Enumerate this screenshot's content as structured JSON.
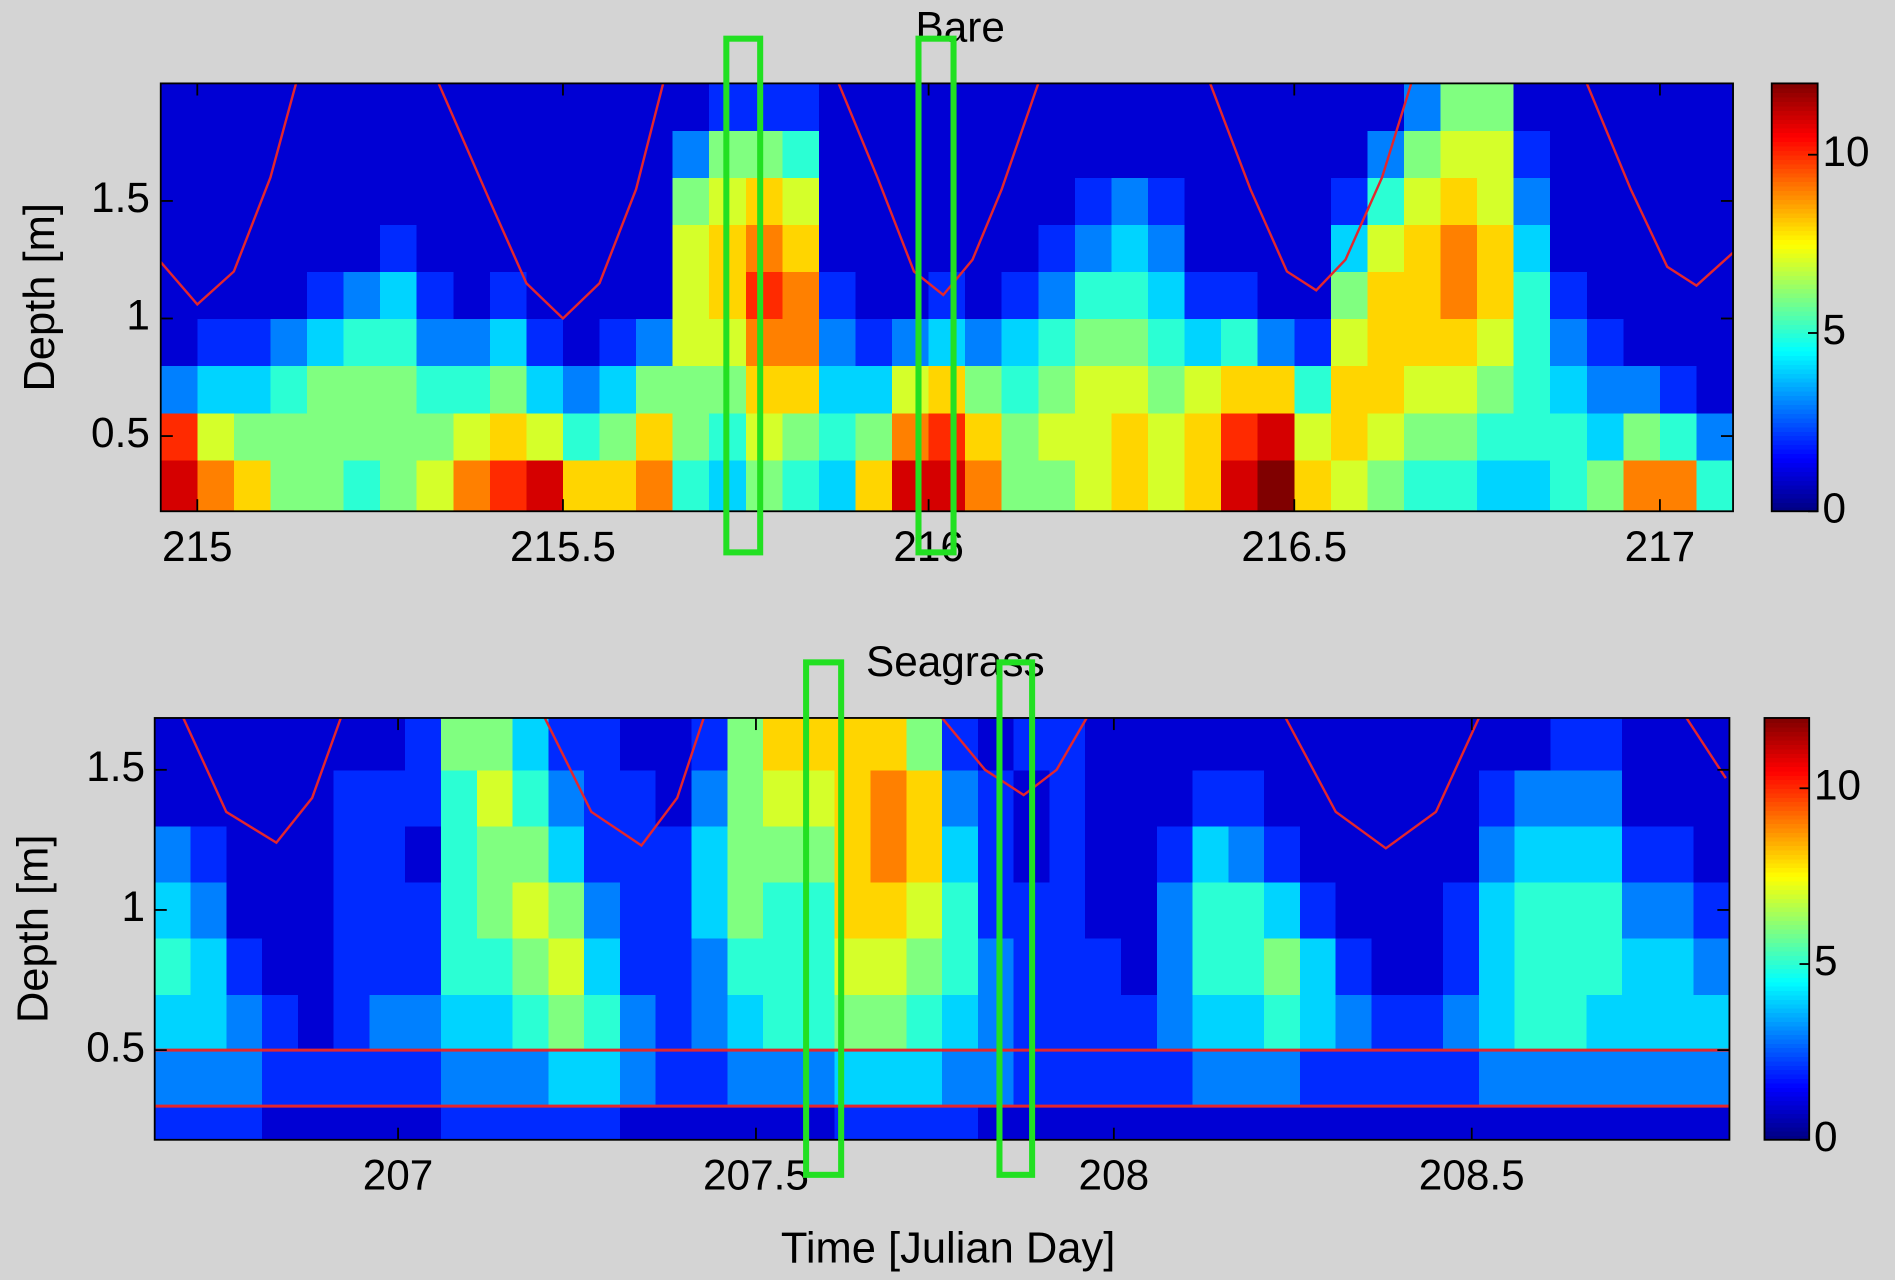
{
  "chart_data": [
    {
      "type": "heatmap",
      "title": "Bare",
      "ylabel": "Depth [m]",
      "colormap": "jet",
      "xlim": [
        214.95,
        217.1
      ],
      "ylim": [
        0.18,
        2.0
      ],
      "xticks": [
        215,
        215.5,
        216,
        216.5,
        217
      ],
      "yticks": [
        0.5,
        1,
        1.5
      ],
      "clim": [
        0,
        12
      ],
      "cticks": [
        0,
        5,
        10
      ],
      "xbins": [
        214.95,
        215,
        215.05,
        215.1,
        215.15,
        215.2,
        215.25,
        215.3,
        215.35,
        215.4,
        215.45,
        215.5,
        215.55,
        215.6,
        215.65,
        215.7,
        215.75,
        215.8,
        215.85,
        215.9,
        215.95,
        216,
        216.05,
        216.1,
        216.15,
        216.2,
        216.25,
        216.3,
        216.35,
        216.4,
        216.45,
        216.5,
        216.55,
        216.6,
        216.65,
        216.7,
        216.75,
        216.8,
        216.85,
        216.9,
        216.95,
        217,
        217.05,
        217.1
      ],
      "ybins": [
        0.18,
        0.4,
        0.6,
        0.8,
        1.0,
        1.2,
        1.4,
        1.6,
        1.8,
        2.0
      ],
      "z": [
        [
          11,
          10,
          3,
          1,
          1,
          1,
          1,
          1,
          1
        ],
        [
          9,
          7,
          4,
          2,
          1,
          1,
          1,
          1,
          1
        ],
        [
          8,
          6,
          4,
          2,
          1,
          1,
          1,
          1,
          1
        ],
        [
          6,
          6,
          5,
          3,
          1,
          1,
          1,
          1,
          1
        ],
        [
          6,
          6,
          6,
          4,
          2,
          1,
          1,
          1,
          1
        ],
        [
          5,
          6,
          6,
          5,
          3,
          1,
          1,
          1,
          1
        ],
        [
          6,
          6,
          6,
          5,
          4,
          2,
          1,
          1,
          1
        ],
        [
          7,
          6,
          5,
          3,
          2,
          1,
          1,
          1,
          1
        ],
        [
          9,
          7,
          5,
          3,
          1,
          1,
          1,
          1,
          1
        ],
        [
          10,
          8,
          6,
          4,
          2,
          1,
          1,
          1,
          1
        ],
        [
          11,
          7,
          4,
          2,
          1,
          1,
          1,
          1,
          1
        ],
        [
          8,
          5,
          3,
          1,
          1,
          1,
          1,
          1,
          1
        ],
        [
          8,
          6,
          4,
          2,
          1,
          1,
          1,
          1,
          1
        ],
        [
          9,
          8,
          6,
          3,
          1,
          1,
          1,
          1,
          1
        ],
        [
          5,
          6,
          6,
          7,
          7,
          7,
          6,
          3,
          1
        ],
        [
          4,
          5,
          6,
          7,
          8,
          8,
          7,
          6,
          2
        ],
        [
          6,
          7,
          8,
          9,
          10,
          9,
          8,
          6,
          2
        ],
        [
          5,
          6,
          8,
          9,
          9,
          8,
          7,
          5,
          2
        ],
        [
          4,
          5,
          4,
          3,
          2,
          1,
          1,
          1,
          1
        ],
        [
          8,
          6,
          4,
          2,
          1,
          1,
          1,
          1,
          1
        ],
        [
          11,
          9,
          7,
          3,
          1,
          1,
          1,
          1,
          1
        ],
        [
          11,
          10,
          8,
          4,
          2,
          1,
          1,
          1,
          1
        ],
        [
          9,
          8,
          6,
          3,
          1,
          1,
          1,
          1,
          1
        ],
        [
          6,
          6,
          5,
          4,
          2,
          1,
          1,
          1,
          1
        ],
        [
          6,
          7,
          6,
          5,
          3,
          2,
          1,
          1,
          1
        ],
        [
          7,
          7,
          7,
          6,
          5,
          3,
          2,
          1,
          1
        ],
        [
          8,
          8,
          7,
          6,
          5,
          4,
          3,
          1,
          1
        ],
        [
          7,
          7,
          6,
          5,
          4,
          3,
          2,
          1,
          1
        ],
        [
          8,
          8,
          7,
          4,
          2,
          1,
          1,
          1,
          1
        ],
        [
          11,
          10,
          8,
          5,
          2,
          1,
          1,
          1,
          1
        ],
        [
          12,
          11,
          8,
          3,
          1,
          1,
          1,
          1,
          1
        ],
        [
          8,
          7,
          5,
          2,
          1,
          1,
          1,
          1,
          1
        ],
        [
          7,
          8,
          8,
          7,
          6,
          4,
          2,
          1,
          1
        ],
        [
          6,
          7,
          8,
          8,
          8,
          7,
          5,
          3,
          1
        ],
        [
          5,
          6,
          7,
          8,
          8,
          8,
          7,
          6,
          3
        ],
        [
          5,
          6,
          7,
          8,
          9,
          9,
          8,
          7,
          6
        ],
        [
          4,
          5,
          6,
          7,
          8,
          8,
          7,
          7,
          6
        ],
        [
          4,
          5,
          5,
          5,
          5,
          4,
          3,
          2,
          1
        ],
        [
          5,
          5,
          4,
          3,
          2,
          1,
          1,
          1,
          1
        ],
        [
          6,
          4,
          3,
          2,
          1,
          1,
          1,
          1,
          1
        ],
        [
          9,
          6,
          3,
          1,
          1,
          1,
          1,
          1,
          1
        ],
        [
          9,
          5,
          2,
          1,
          1,
          1,
          1,
          1,
          1
        ],
        [
          5,
          3,
          1,
          1,
          1,
          1,
          1,
          1,
          1
        ]
      ],
      "tide": {
        "color": "#e3262d",
        "x": [
          214.95,
          215.0,
          215.05,
          215.1,
          215.135,
          null,
          215.33,
          215.4,
          215.45,
          215.5,
          215.55,
          215.6,
          215.637,
          null,
          215.877,
          215.93,
          215.98,
          216.02,
          216.06,
          216.1,
          216.15,
          null,
          216.385,
          216.44,
          216.49,
          216.53,
          216.57,
          216.62,
          216.66,
          null,
          216.9,
          216.96,
          217.01,
          217.05,
          217.1
        ],
        "y": [
          1.24,
          1.06,
          1.2,
          1.6,
          2.0,
          null,
          2.0,
          1.5,
          1.15,
          1.0,
          1.15,
          1.55,
          2.0,
          null,
          2.0,
          1.6,
          1.2,
          1.1,
          1.25,
          1.55,
          2.0,
          null,
          2.0,
          1.55,
          1.2,
          1.12,
          1.25,
          1.6,
          2.0,
          null,
          2.0,
          1.55,
          1.22,
          1.14,
          1.28
        ]
      }
    },
    {
      "type": "heatmap",
      "title": "Seagrass",
      "ylabel": "Depth [m]",
      "xlabel": "Time [Julian Day]",
      "colormap": "jet",
      "xlim": [
        206.66,
        208.86
      ],
      "ylim": [
        0.18,
        1.685
      ],
      "xticks": [
        207,
        207.5,
        208,
        208.5
      ],
      "yticks": [
        0.5,
        1,
        1.5
      ],
      "clim": [
        0,
        12
      ],
      "cticks": [
        0,
        5,
        10
      ],
      "xbins": [
        206.66,
        206.71,
        206.76,
        206.81,
        206.86,
        206.91,
        206.96,
        207.01,
        207.06,
        207.11,
        207.16,
        207.21,
        207.26,
        207.31,
        207.36,
        207.41,
        207.46,
        207.51,
        207.56,
        207.61,
        207.66,
        207.71,
        207.76,
        207.81,
        207.86,
        207.91,
        207.96,
        208.01,
        208.06,
        208.11,
        208.16,
        208.21,
        208.26,
        208.31,
        208.36,
        208.41,
        208.46,
        208.51,
        208.56,
        208.61,
        208.66,
        208.71,
        208.76,
        208.81,
        208.86
      ],
      "ybins": [
        0.18,
        0.3,
        0.5,
        0.7,
        0.9,
        1.1,
        1.3,
        1.5,
        1.685
      ],
      "z": [
        [
          2,
          3,
          4,
          5,
          4,
          3,
          1,
          1
        ],
        [
          2,
          3,
          4,
          4,
          3,
          2,
          1,
          1
        ],
        [
          2,
          3,
          3,
          2,
          1,
          1,
          1,
          1
        ],
        [
          1,
          2,
          2,
          1,
          1,
          1,
          1,
          1
        ],
        [
          1,
          2,
          1,
          1,
          1,
          1,
          1,
          1
        ],
        [
          1,
          2,
          2,
          2,
          2,
          2,
          2,
          1
        ],
        [
          1,
          2,
          3,
          2,
          2,
          2,
          2,
          1
        ],
        [
          1,
          2,
          3,
          2,
          2,
          1,
          2,
          2
        ],
        [
          2,
          3,
          4,
          5,
          5,
          5,
          5,
          6
        ],
        [
          2,
          3,
          4,
          5,
          6,
          6,
          7,
          6
        ],
        [
          2,
          3,
          5,
          6,
          7,
          6,
          5,
          4
        ],
        [
          2,
          4,
          6,
          7,
          6,
          4,
          3,
          2
        ],
        [
          2,
          4,
          5,
          4,
          3,
          2,
          2,
          2
        ],
        [
          1,
          3,
          3,
          2,
          2,
          2,
          2,
          1
        ],
        [
          1,
          2,
          2,
          2,
          2,
          2,
          1,
          1
        ],
        [
          1,
          2,
          3,
          3,
          4,
          4,
          3,
          2
        ],
        [
          1,
          3,
          4,
          5,
          6,
          6,
          6,
          6
        ],
        [
          1,
          3,
          5,
          5,
          5,
          6,
          7,
          8
        ],
        [
          1,
          3,
          5,
          5,
          5,
          6,
          7,
          8
        ],
        [
          2,
          4,
          6,
          7,
          8,
          8,
          8,
          8
        ],
        [
          2,
          4,
          6,
          7,
          8,
          9,
          9,
          8
        ],
        [
          2,
          4,
          5,
          6,
          7,
          8,
          8,
          6
        ],
        [
          2,
          3,
          4,
          5,
          5,
          4,
          3,
          2
        ],
        [
          1,
          3,
          3,
          3,
          2,
          2,
          2,
          1
        ],
        [
          1,
          2,
          2,
          2,
          2,
          1,
          1,
          2
        ],
        [
          1,
          2,
          2,
          2,
          2,
          2,
          2,
          2
        ],
        [
          1,
          2,
          2,
          2,
          1,
          1,
          1,
          1
        ],
        [
          1,
          2,
          2,
          1,
          1,
          1,
          1,
          1
        ],
        [
          1,
          2,
          3,
          3,
          3,
          2,
          1,
          1
        ],
        [
          1,
          3,
          4,
          5,
          5,
          4,
          2,
          1
        ],
        [
          1,
          3,
          4,
          5,
          5,
          3,
          2,
          1
        ],
        [
          1,
          3,
          5,
          6,
          4,
          2,
          1,
          1
        ],
        [
          1,
          2,
          4,
          4,
          2,
          1,
          1,
          1
        ],
        [
          1,
          2,
          3,
          2,
          1,
          1,
          1,
          1
        ],
        [
          1,
          2,
          2,
          1,
          1,
          1,
          1,
          1
        ],
        [
          1,
          2,
          2,
          1,
          1,
          1,
          1,
          1
        ],
        [
          1,
          2,
          3,
          2,
          2,
          1,
          1,
          1
        ],
        [
          1,
          3,
          4,
          4,
          4,
          3,
          2,
          1
        ],
        [
          1,
          3,
          5,
          5,
          5,
          4,
          3,
          1
        ],
        [
          1,
          3,
          5,
          5,
          5,
          4,
          3,
          2
        ],
        [
          1,
          3,
          4,
          5,
          5,
          4,
          3,
          2
        ],
        [
          1,
          3,
          4,
          4,
          3,
          2,
          1,
          1
        ],
        [
          1,
          3,
          4,
          4,
          3,
          2,
          1,
          1
        ],
        [
          1,
          3,
          4,
          3,
          2,
          1,
          1,
          1
        ]
      ],
      "hlines": [
        0.5,
        0.3
      ],
      "hline_color": "#e3262d",
      "tide": {
        "color": "#e3262d",
        "x": [
          206.7,
          206.76,
          206.83,
          206.88,
          206.92,
          null,
          207.205,
          207.27,
          207.34,
          207.39,
          207.427,
          null,
          207.76,
          207.82,
          207.874,
          207.92,
          207.962,
          null,
          208.24,
          208.31,
          208.38,
          208.45,
          208.51,
          null,
          208.8,
          208.855
        ],
        "y": [
          1.685,
          1.35,
          1.24,
          1.4,
          1.685,
          null,
          1.685,
          1.35,
          1.23,
          1.4,
          1.685,
          null,
          1.685,
          1.5,
          1.41,
          1.5,
          1.685,
          null,
          1.685,
          1.35,
          1.22,
          1.35,
          1.685,
          null,
          1.685,
          1.47
        ]
      }
    }
  ]
}
